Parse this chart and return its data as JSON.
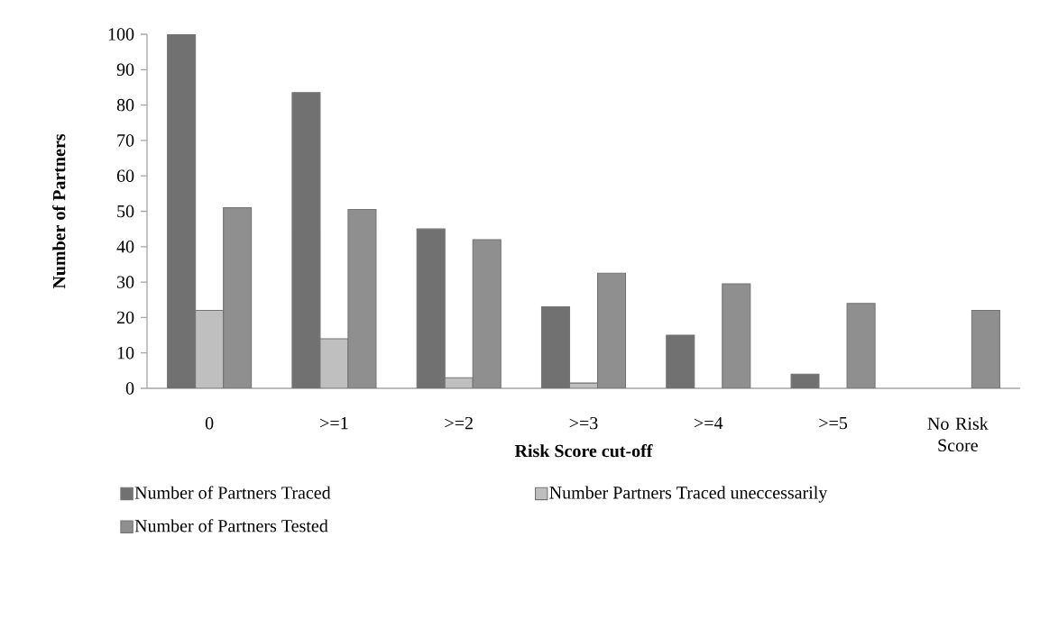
{
  "chart_data": {
    "type": "bar",
    "xlabel": "Risk Score cut-off",
    "ylabel": "Number of Partners",
    "categories": [
      "0",
      ">=1",
      ">=2",
      ">=3",
      ">=4",
      ">=5",
      "No Risk Score"
    ],
    "series": [
      {
        "name": "Number of Partners Traced",
        "color": "#717171",
        "values": [
          100,
          83.5,
          45,
          23,
          15,
          4,
          0
        ]
      },
      {
        "name": "Number Partners Traced uneccessarily",
        "color": "#bfbfbf",
        "values": [
          22,
          14,
          3,
          1.5,
          0,
          0,
          0
        ]
      },
      {
        "name": "Number of Partners Tested",
        "color": "#8f8f8f",
        "values": [
          51,
          50.5,
          42,
          32.5,
          29.5,
          24,
          22
        ]
      }
    ],
    "ylim": [
      0,
      100
    ],
    "yticks": [
      0,
      10,
      20,
      30,
      40,
      50,
      60,
      70,
      80,
      90,
      100
    ],
    "legend": "bottom"
  }
}
